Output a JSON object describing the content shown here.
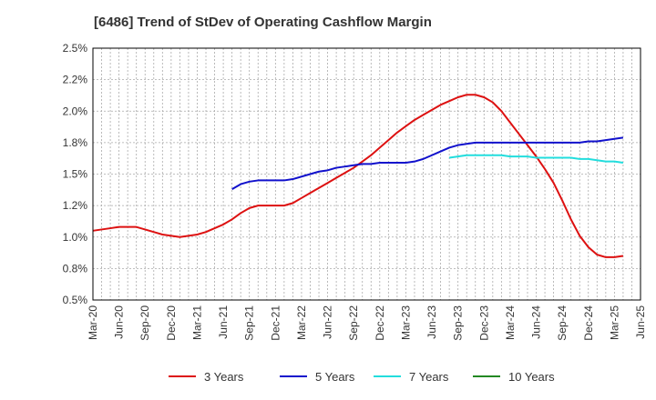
{
  "chart_data": {
    "type": "line",
    "title": "[6486]  Trend of StDev of Operating Cashflow Margin",
    "xlabel": "",
    "ylabel": "",
    "x_ticks": [
      "Mar-20",
      "Jun-20",
      "Sep-20",
      "Dec-20",
      "Mar-21",
      "Jun-21",
      "Sep-21",
      "Dec-21",
      "Mar-22",
      "Jun-22",
      "Sep-22",
      "Dec-22",
      "Mar-23",
      "Jun-23",
      "Sep-23",
      "Dec-23",
      "Mar-24",
      "Jun-24",
      "Sep-24",
      "Dec-24",
      "Mar-25",
      "Jun-25"
    ],
    "y_ticks": [
      "0.5%",
      "0.8%",
      "1.0%",
      "1.2%",
      "1.5%",
      "1.8%",
      "2.0%",
      "2.2%",
      "2.5%"
    ],
    "ylim": [
      0.5,
      2.5
    ],
    "grid": true,
    "legend_position": "bottom",
    "series": [
      {
        "name": "3 Years",
        "color": "#dd1111",
        "points": [
          [
            "Mar-20",
            1.05
          ],
          [
            "Apr-20",
            1.06
          ],
          [
            "May-20",
            1.07
          ],
          [
            "Jun-20",
            1.08
          ],
          [
            "Jul-20",
            1.08
          ],
          [
            "Aug-20",
            1.08
          ],
          [
            "Sep-20",
            1.06
          ],
          [
            "Oct-20",
            1.04
          ],
          [
            "Nov-20",
            1.02
          ],
          [
            "Dec-20",
            1.01
          ],
          [
            "Jan-21",
            1.0
          ],
          [
            "Feb-21",
            1.01
          ],
          [
            "Mar-21",
            1.02
          ],
          [
            "Apr-21",
            1.04
          ],
          [
            "May-21",
            1.07
          ],
          [
            "Jun-21",
            1.1
          ],
          [
            "Jul-21",
            1.14
          ],
          [
            "Aug-21",
            1.19
          ],
          [
            "Sep-21",
            1.23
          ],
          [
            "Oct-21",
            1.25
          ],
          [
            "Nov-21",
            1.25
          ],
          [
            "Dec-21",
            1.25
          ],
          [
            "Jan-22",
            1.25
          ],
          [
            "Feb-22",
            1.27
          ],
          [
            "Mar-22",
            1.31
          ],
          [
            "Apr-22",
            1.35
          ],
          [
            "May-22",
            1.39
          ],
          [
            "Jun-22",
            1.43
          ],
          [
            "Jul-22",
            1.47
          ],
          [
            "Aug-22",
            1.51
          ],
          [
            "Sep-22",
            1.55
          ],
          [
            "Oct-22",
            1.6
          ],
          [
            "Nov-22",
            1.65
          ],
          [
            "Dec-22",
            1.71
          ],
          [
            "Jan-23",
            1.77
          ],
          [
            "Feb-23",
            1.83
          ],
          [
            "Mar-23",
            1.88
          ],
          [
            "Apr-23",
            1.93
          ],
          [
            "May-23",
            1.97
          ],
          [
            "Jun-23",
            2.01
          ],
          [
            "Jul-23",
            2.05
          ],
          [
            "Aug-23",
            2.08
          ],
          [
            "Sep-23",
            2.11
          ],
          [
            "Oct-23",
            2.13
          ],
          [
            "Nov-23",
            2.13
          ],
          [
            "Dec-23",
            2.11
          ],
          [
            "Jan-24",
            2.07
          ],
          [
            "Feb-24",
            2.0
          ],
          [
            "Mar-24",
            1.91
          ],
          [
            "Apr-24",
            1.82
          ],
          [
            "May-24",
            1.73
          ],
          [
            "Jun-24",
            1.64
          ],
          [
            "Jul-24",
            1.54
          ],
          [
            "Aug-24",
            1.43
          ],
          [
            "Sep-24",
            1.29
          ],
          [
            "Oct-24",
            1.14
          ],
          [
            "Nov-24",
            1.01
          ],
          [
            "Dec-24",
            0.92
          ],
          [
            "Jan-25",
            0.86
          ],
          [
            "Feb-25",
            0.84
          ],
          [
            "Mar-25",
            0.84
          ],
          [
            "Apr-25",
            0.85
          ]
        ]
      },
      {
        "name": "5 Years",
        "color": "#1111cc",
        "points": [
          [
            "Jul-21",
            1.38
          ],
          [
            "Aug-21",
            1.42
          ],
          [
            "Sep-21",
            1.44
          ],
          [
            "Oct-21",
            1.45
          ],
          [
            "Nov-21",
            1.45
          ],
          [
            "Dec-21",
            1.45
          ],
          [
            "Jan-22",
            1.45
          ],
          [
            "Feb-22",
            1.46
          ],
          [
            "Mar-22",
            1.48
          ],
          [
            "Apr-22",
            1.5
          ],
          [
            "May-22",
            1.52
          ],
          [
            "Jun-22",
            1.53
          ],
          [
            "Jul-22",
            1.55
          ],
          [
            "Aug-22",
            1.56
          ],
          [
            "Sep-22",
            1.57
          ],
          [
            "Oct-22",
            1.58
          ],
          [
            "Nov-22",
            1.58
          ],
          [
            "Dec-22",
            1.59
          ],
          [
            "Jan-23",
            1.59
          ],
          [
            "Feb-23",
            1.59
          ],
          [
            "Mar-23",
            1.59
          ],
          [
            "Apr-23",
            1.6
          ],
          [
            "May-23",
            1.62
          ],
          [
            "Jun-23",
            1.65
          ],
          [
            "Jul-23",
            1.68
          ],
          [
            "Aug-23",
            1.71
          ],
          [
            "Sep-23",
            1.73
          ],
          [
            "Oct-23",
            1.74
          ],
          [
            "Nov-23",
            1.75
          ],
          [
            "Dec-23",
            1.75
          ],
          [
            "Jan-24",
            1.75
          ],
          [
            "Feb-24",
            1.75
          ],
          [
            "Mar-24",
            1.75
          ],
          [
            "Apr-24",
            1.75
          ],
          [
            "May-24",
            1.75
          ],
          [
            "Jun-24",
            1.75
          ],
          [
            "Jul-24",
            1.75
          ],
          [
            "Aug-24",
            1.75
          ],
          [
            "Sep-24",
            1.75
          ],
          [
            "Oct-24",
            1.75
          ],
          [
            "Nov-24",
            1.75
          ],
          [
            "Dec-24",
            1.76
          ],
          [
            "Jan-25",
            1.76
          ],
          [
            "Feb-25",
            1.77
          ],
          [
            "Mar-25",
            1.78
          ],
          [
            "Apr-25",
            1.79
          ]
        ]
      },
      {
        "name": "7 Years",
        "color": "#22dddd",
        "points": [
          [
            "Aug-23",
            1.63
          ],
          [
            "Sep-23",
            1.64
          ],
          [
            "Oct-23",
            1.65
          ],
          [
            "Nov-23",
            1.65
          ],
          [
            "Dec-23",
            1.65
          ],
          [
            "Jan-24",
            1.65
          ],
          [
            "Feb-24",
            1.65
          ],
          [
            "Mar-24",
            1.64
          ],
          [
            "Apr-24",
            1.64
          ],
          [
            "May-24",
            1.64
          ],
          [
            "Jun-24",
            1.63
          ],
          [
            "Jul-24",
            1.63
          ],
          [
            "Aug-24",
            1.63
          ],
          [
            "Sep-24",
            1.63
          ],
          [
            "Oct-24",
            1.63
          ],
          [
            "Nov-24",
            1.62
          ],
          [
            "Dec-24",
            1.62
          ],
          [
            "Jan-25",
            1.61
          ],
          [
            "Feb-25",
            1.6
          ],
          [
            "Mar-25",
            1.6
          ],
          [
            "Apr-25",
            1.59
          ]
        ]
      },
      {
        "name": "10 Years",
        "color": "#228822",
        "points": []
      }
    ]
  }
}
